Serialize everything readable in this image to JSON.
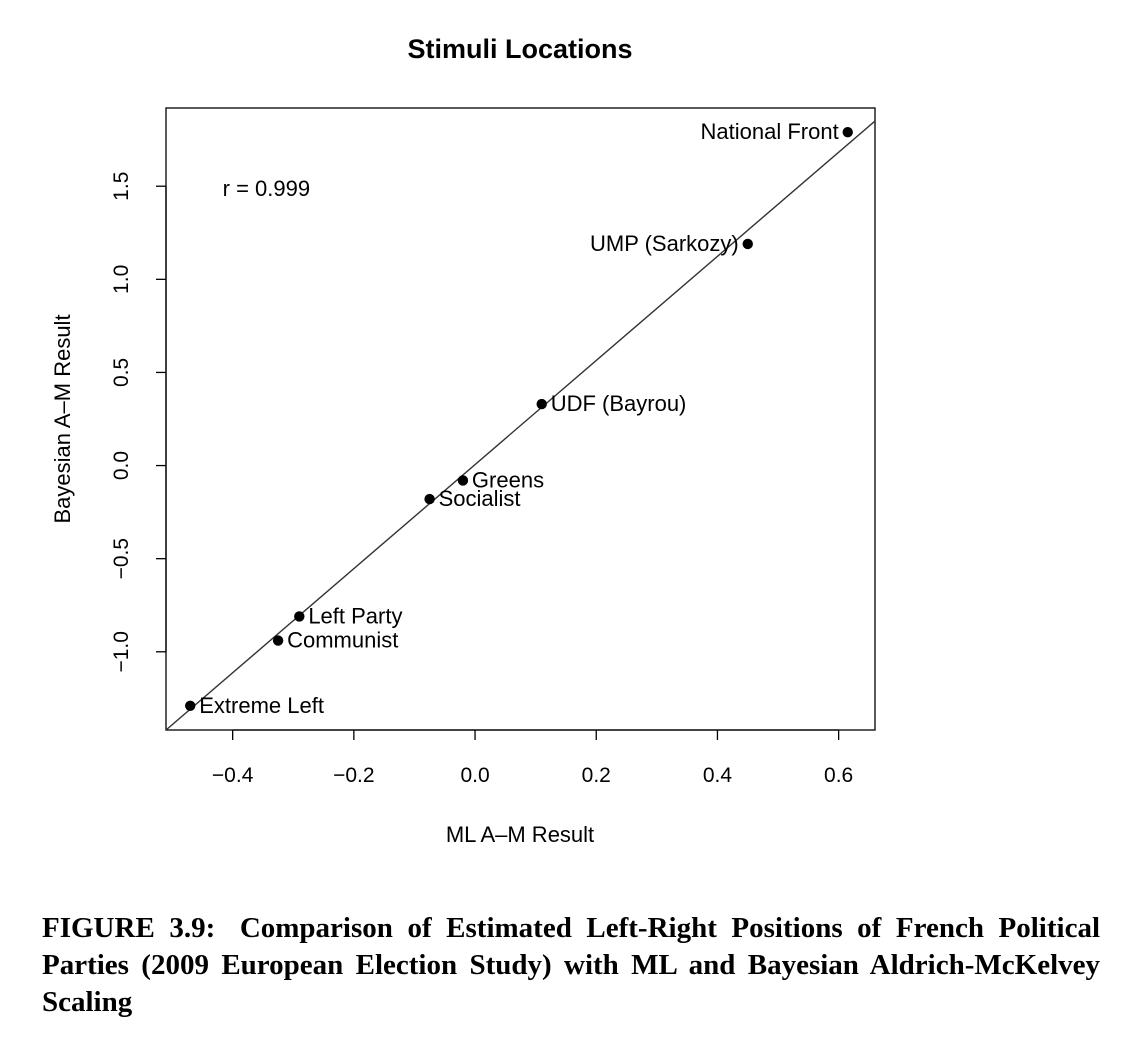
{
  "chart_data": {
    "type": "scatter",
    "title": "Stimuli Locations",
    "xlabel": "ML A–M Result",
    "ylabel": "Bayesian A–M Result",
    "xlim": [
      -0.51,
      0.66
    ],
    "ylim": [
      -1.42,
      1.92
    ],
    "xticks": [
      -0.4,
      -0.2,
      0.0,
      0.2,
      0.4,
      0.6
    ],
    "xtick_labels": [
      "−0.4",
      "−0.2",
      "0.0",
      "0.2",
      "0.4",
      "0.6"
    ],
    "yticks": [
      -1.0,
      -0.5,
      0.0,
      0.5,
      1.0,
      1.5
    ],
    "ytick_labels": [
      "−1.0",
      "−0.5",
      "0.0",
      "0.5",
      "1.0",
      "1.5"
    ],
    "grid": false,
    "annotation": {
      "text": "r =  0.999",
      "x": -0.4,
      "y": 1.49
    },
    "fit_line": {
      "x": [
        -0.51,
        0.66
      ],
      "y": [
        -1.42,
        1.85
      ]
    },
    "points": [
      {
        "label": "National Front",
        "x": 0.615,
        "y": 1.79,
        "label_side": "left"
      },
      {
        "label": "UMP (Sarkozy)",
        "x": 0.45,
        "y": 1.19,
        "label_side": "left"
      },
      {
        "label": "UDF (Bayrou)",
        "x": 0.11,
        "y": 0.33,
        "label_side": "right"
      },
      {
        "label": "Greens",
        "x": -0.02,
        "y": -0.08,
        "label_side": "right"
      },
      {
        "label": "Socialist",
        "x": -0.075,
        "y": -0.18,
        "label_side": "right"
      },
      {
        "label": "Left Party",
        "x": -0.29,
        "y": -0.81,
        "label_side": "right"
      },
      {
        "label": "Communist",
        "x": -0.325,
        "y": -0.94,
        "label_side": "right"
      },
      {
        "label": "Extreme Left",
        "x": -0.47,
        "y": -1.29,
        "label_side": "right"
      }
    ]
  },
  "caption": {
    "label": "FIGURE 3.9:",
    "text": "Comparison of Estimated Left-Right Positions of French Political Parties (2009 European Election Study) with ML and Bayesian Aldrich-McKelvey Scaling"
  }
}
